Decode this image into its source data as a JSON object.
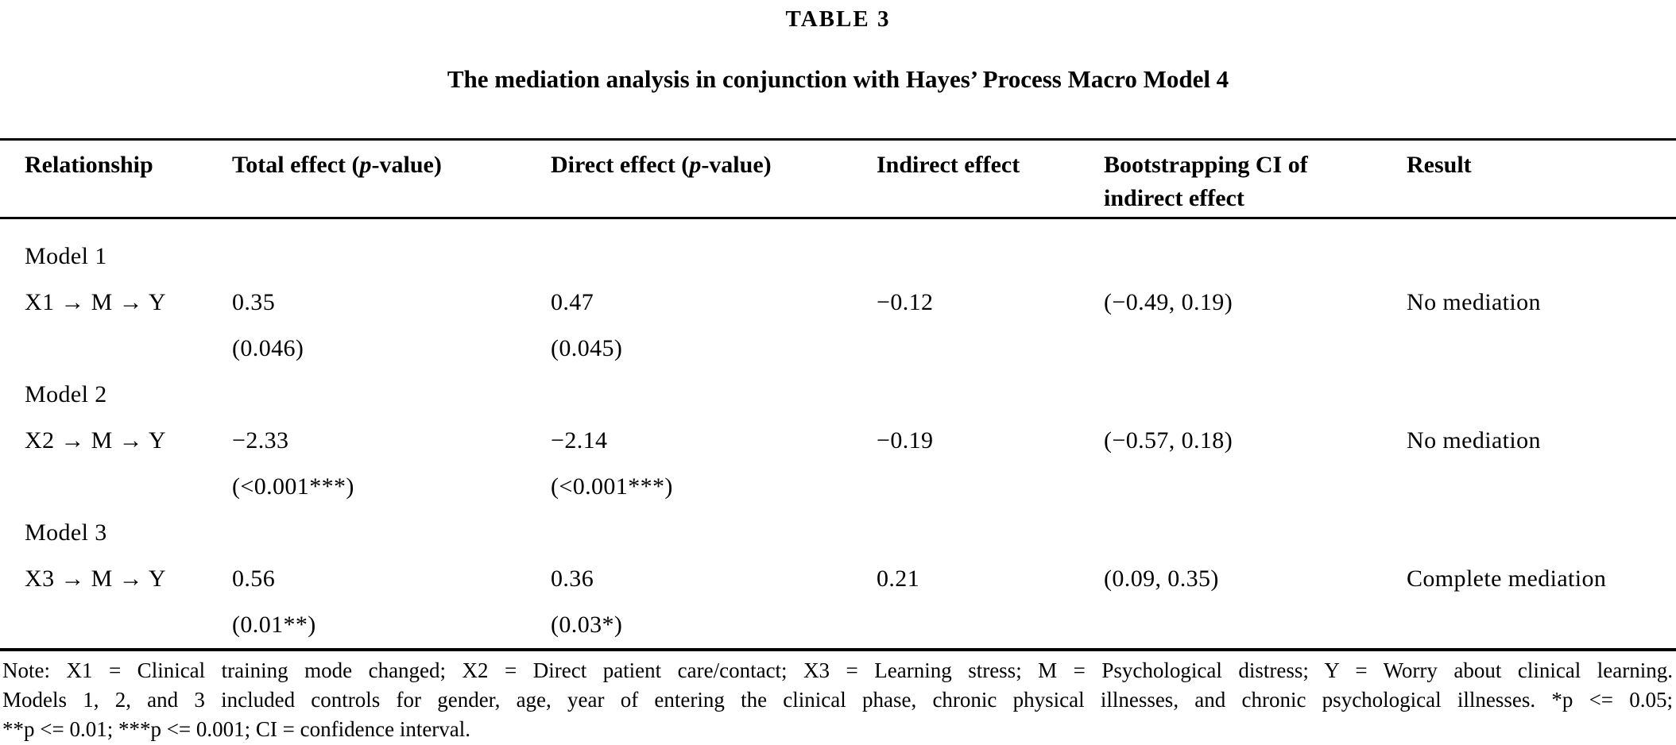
{
  "page": {
    "title": "TABLE 3",
    "subtitle": "The mediation analysis in conjunction with Hayes’ Process Macro Model 4"
  },
  "table": {
    "headers": {
      "relationship": "Relationship",
      "total_effect": {
        "pre": "Total effect (",
        "italic": "p",
        "post": "-value)"
      },
      "direct_effect": {
        "pre": "Direct effect (",
        "italic": "p",
        "post": "-value)"
      },
      "indirect_effect": "Indirect effect",
      "bootstrap_ci_line1": "Bootstrapping CI of",
      "bootstrap_ci_line2": "indirect effect",
      "result": "Result"
    },
    "models": [
      {
        "label": "Model 1",
        "relationship": "X1 → M → Y",
        "total_effect": "0.35",
        "total_p": "(0.046)",
        "direct_effect": "0.47",
        "direct_p": "(0.045)",
        "indirect_effect": "−0.12",
        "bootstrap_ci": "(−0.49, 0.19)",
        "result": "No mediation"
      },
      {
        "label": "Model 2",
        "relationship": "X2 → M → Y",
        "total_effect": "−2.33",
        "total_p": "(<0.001***)",
        "direct_effect": "−2.14",
        "direct_p": "(<0.001***)",
        "indirect_effect": "−0.19",
        "bootstrap_ci": "(−0.57, 0.18)",
        "result": "No mediation"
      },
      {
        "label": "Model 3",
        "relationship": "X3 → M → Y",
        "total_effect": "0.56",
        "total_p": "(0.01**)",
        "direct_effect": "0.36",
        "direct_p": "(0.03*)",
        "indirect_effect": "0.21",
        "bootstrap_ci": "(0.09, 0.35)",
        "result": "Complete mediation"
      }
    ]
  },
  "note": {
    "line1": "Note: X1 = Clinical training mode changed; X2 = Direct patient care/contact; X3 = Learning stress; M = Psychological distress; Y = Worry about clinical learning.",
    "line2": "Models 1, 2, and 3 included controls for gender, age, year of entering the clinical phase, chronic physical illnesses, and chronic psychological illnesses. *p <= 0.05;",
    "line3": "**p <= 0.01; ***p <= 0.001; CI = confidence interval."
  }
}
